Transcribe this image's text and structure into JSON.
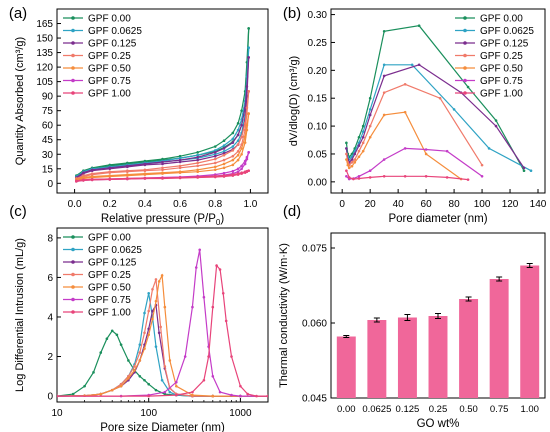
{
  "chart_data": [
    {
      "panel": "(a)",
      "type": "line",
      "xlabel": "Relative pressure (P/P",
      "xlabel_sub": "0",
      "xlabel_end": ")",
      "ylabel": "Quantity Absorbed (cm³/g)",
      "xlim": [
        -0.1,
        1.1
      ],
      "ylim": [
        -10,
        180
      ],
      "xticks": [
        0.0,
        0.2,
        0.4,
        0.6,
        0.8,
        1.0
      ],
      "xtick_labels": [
        "0.0",
        "0.2",
        "0.4",
        "0.6",
        "0.8",
        "1.0"
      ],
      "yticks": [
        0,
        15,
        30,
        45,
        60,
        75,
        90,
        105,
        120,
        135,
        150,
        165
      ],
      "ytick_labels": [
        "0",
        "15",
        "30",
        "45",
        "60",
        "75",
        "90",
        "105",
        "120",
        "135",
        "150",
        "165"
      ],
      "grid": false,
      "legend": "top-left",
      "series": [
        {
          "name": "GPF 0.00",
          "color": "#1a8f5c",
          "x": [
            0.01,
            0.05,
            0.1,
            0.2,
            0.3,
            0.4,
            0.5,
            0.6,
            0.7,
            0.8,
            0.85,
            0.9,
            0.93,
            0.95,
            0.97,
            0.98,
            0.99
          ],
          "y": [
            7,
            12,
            15,
            18,
            20,
            22,
            24,
            26,
            29,
            33,
            37,
            43,
            50,
            60,
            80,
            110,
            160
          ],
          "y_desorb": [
            8,
            13,
            16,
            19,
            21,
            23,
            25,
            28,
            32,
            38,
            44,
            52,
            62,
            75,
            95,
            125,
            160
          ]
        },
        {
          "name": "GPF 0.0625",
          "color": "#2fa3c4",
          "x": [
            0.01,
            0.05,
            0.1,
            0.2,
            0.3,
            0.4,
            0.5,
            0.6,
            0.7,
            0.8,
            0.85,
            0.9,
            0.93,
            0.95,
            0.97,
            0.98,
            0.99
          ],
          "y": [
            6,
            11,
            14,
            16,
            18,
            20,
            22,
            24,
            26,
            30,
            33,
            38,
            44,
            52,
            70,
            95,
            140
          ],
          "y_desorb": [
            7,
            12,
            15,
            17,
            19,
            21,
            23,
            26,
            29,
            34,
            39,
            46,
            55,
            66,
            85,
            110,
            140
          ]
        },
        {
          "name": "GPF 0.125",
          "color": "#7b2d8e",
          "x": [
            0.01,
            0.05,
            0.1,
            0.2,
            0.3,
            0.4,
            0.5,
            0.6,
            0.7,
            0.8,
            0.85,
            0.9,
            0.93,
            0.95,
            0.97,
            0.98,
            0.99
          ],
          "y": [
            5,
            10,
            13,
            15,
            17,
            19,
            20,
            22,
            24,
            28,
            31,
            35,
            40,
            48,
            65,
            90,
            130
          ],
          "y_desorb": [
            6,
            11,
            14,
            16,
            18,
            20,
            22,
            24,
            27,
            32,
            36,
            42,
            50,
            60,
            78,
            100,
            130
          ]
        },
        {
          "name": "GPF 0.25",
          "color": "#f07a6a",
          "x": [
            0.01,
            0.05,
            0.1,
            0.2,
            0.3,
            0.4,
            0.5,
            0.6,
            0.7,
            0.8,
            0.85,
            0.9,
            0.93,
            0.95,
            0.97,
            0.98,
            0.99
          ],
          "y": [
            4,
            7,
            9,
            11,
            12,
            13,
            14,
            16,
            18,
            21,
            24,
            28,
            33,
            40,
            55,
            72,
            95
          ],
          "y_desorb": [
            5,
            8,
            10,
            12,
            13,
            14,
            16,
            18,
            21,
            25,
            29,
            34,
            40,
            48,
            62,
            78,
            95
          ]
        },
        {
          "name": "GPF 0.50",
          "color": "#f58d3c",
          "x": [
            0.01,
            0.05,
            0.1,
            0.2,
            0.3,
            0.4,
            0.5,
            0.6,
            0.7,
            0.8,
            0.85,
            0.9,
            0.93,
            0.95,
            0.97,
            0.98,
            0.99
          ],
          "y": [
            3,
            5,
            6,
            7,
            8,
            9,
            10,
            11,
            12,
            14,
            16,
            19,
            24,
            30,
            42,
            55,
            72
          ],
          "y_desorb": [
            4,
            6,
            7,
            8,
            9,
            10,
            11,
            12,
            14,
            17,
            20,
            24,
            29,
            36,
            48,
            60,
            72
          ]
        },
        {
          "name": "GPF 0.75",
          "color": "#c43cc8",
          "x": [
            0.01,
            0.05,
            0.1,
            0.2,
            0.3,
            0.4,
            0.5,
            0.6,
            0.7,
            0.8,
            0.85,
            0.9,
            0.93,
            0.95,
            0.97,
            0.98,
            0.99
          ],
          "y": [
            2,
            3,
            3.5,
            4,
            4.5,
            5,
            5.5,
            6,
            6.5,
            7.5,
            8.5,
            10,
            12,
            15,
            20,
            25,
            32
          ],
          "y_desorb": [
            2.5,
            3.5,
            4,
            4.5,
            5,
            5.5,
            6,
            6.5,
            7.5,
            9,
            10.5,
            12.5,
            15,
            18,
            23,
            27,
            32
          ]
        },
        {
          "name": "GPF 1.00",
          "color": "#e8447a",
          "x": [
            0.01,
            0.05,
            0.1,
            0.2,
            0.3,
            0.4,
            0.5,
            0.6,
            0.7,
            0.8,
            0.85,
            0.9,
            0.93,
            0.95,
            0.97,
            0.98,
            0.99
          ],
          "y": [
            2,
            3,
            3.5,
            4,
            4.5,
            5,
            5,
            5.5,
            6,
            6.5,
            7,
            8,
            9,
            10,
            11,
            12,
            13
          ],
          "y_desorb": [
            2.5,
            3.5,
            4,
            4.5,
            5,
            5.5,
            5.5,
            6,
            6.5,
            7.5,
            8,
            9,
            10,
            11,
            12,
            12.5,
            13
          ]
        }
      ]
    },
    {
      "panel": "(b)",
      "type": "line",
      "xlabel": "Pore diameter (nm)",
      "ylabel": "dV/dlog(D) (cm³/g)",
      "xlim": [
        -8,
        145
      ],
      "ylim": [
        -0.02,
        0.31
      ],
      "xticks": [
        0,
        20,
        40,
        60,
        80,
        100,
        120,
        140
      ],
      "xtick_labels": [
        "0",
        "20",
        "40",
        "60",
        "80",
        "100",
        "120",
        "140"
      ],
      "yticks": [
        0.0,
        0.05,
        0.1,
        0.15,
        0.2,
        0.25,
        0.3
      ],
      "ytick_labels": [
        "0.00",
        "0.05",
        "0.10",
        "0.15",
        "0.20",
        "0.25",
        "0.30"
      ],
      "grid": false,
      "legend": "top-right",
      "series": [
        {
          "name": "GPF 0.00",
          "color": "#1a8f5c",
          "x": [
            3,
            4,
            5,
            7,
            9,
            12,
            15,
            20,
            30,
            55,
            90,
            110,
            130
          ],
          "y": [
            0.07,
            0.05,
            0.045,
            0.05,
            0.06,
            0.08,
            0.1,
            0.15,
            0.27,
            0.28,
            0.17,
            0.11,
            0.02
          ]
        },
        {
          "name": "GPF 0.0625",
          "color": "#2fa3c4",
          "x": [
            3,
            4,
            5,
            7,
            9,
            12,
            15,
            20,
            30,
            50,
            80,
            105,
            135
          ],
          "y": [
            0.06,
            0.045,
            0.04,
            0.045,
            0.055,
            0.07,
            0.09,
            0.13,
            0.21,
            0.21,
            0.13,
            0.06,
            0.02
          ]
        },
        {
          "name": "GPF 0.125",
          "color": "#7b2d8e",
          "x": [
            3,
            4,
            5,
            7,
            9,
            12,
            15,
            20,
            30,
            55,
            85,
            110,
            130
          ],
          "y": [
            0.06,
            0.04,
            0.035,
            0.04,
            0.05,
            0.065,
            0.08,
            0.12,
            0.19,
            0.21,
            0.16,
            0.1,
            0.025
          ]
        },
        {
          "name": "GPF 0.25",
          "color": "#f07a6a",
          "x": [
            3,
            4,
            5,
            7,
            9,
            12,
            15,
            20,
            30,
            45,
            70,
            100
          ],
          "y": [
            0.05,
            0.035,
            0.03,
            0.035,
            0.04,
            0.055,
            0.07,
            0.1,
            0.16,
            0.175,
            0.15,
            0.03
          ]
        },
        {
          "name": "GPF 0.50",
          "color": "#f58d3c",
          "x": [
            3,
            4,
            5,
            7,
            9,
            12,
            15,
            20,
            30,
            45,
            60,
            85
          ],
          "y": [
            0.04,
            0.03,
            0.025,
            0.028,
            0.035,
            0.045,
            0.055,
            0.08,
            0.12,
            0.125,
            0.05,
            0.005
          ]
        },
        {
          "name": "GPF 0.75",
          "color": "#c43cc8",
          "x": [
            3,
            5,
            8,
            12,
            20,
            30,
            45,
            60,
            75,
            100
          ],
          "y": [
            0.01,
            0.005,
            0.006,
            0.01,
            0.02,
            0.04,
            0.06,
            0.058,
            0.055,
            0.01
          ]
        },
        {
          "name": "GPF 1.00",
          "color": "#e8447a",
          "x": [
            3,
            5,
            8,
            12,
            20,
            30,
            45,
            60,
            75,
            90
          ],
          "y": [
            0.02,
            0.008,
            0.005,
            0.006,
            0.008,
            0.01,
            0.01,
            0.01,
            0.008,
            0.004
          ]
        }
      ]
    },
    {
      "panel": "(c)",
      "type": "line",
      "xscale": "log",
      "xlabel": "Pore size Diameter (nm)",
      "ylabel": "Log Differential Intrusion (mL/g)",
      "xlim": [
        10,
        2000
      ],
      "ylim": [
        -0.3,
        8.5
      ],
      "xticks": [
        10,
        100,
        1000
      ],
      "xtick_labels": [
        "10",
        "100",
        "1000"
      ],
      "yticks": [
        0,
        2,
        4,
        6,
        8
      ],
      "ytick_labels": [
        "0",
        "2",
        "4",
        "6",
        "8"
      ],
      "grid": false,
      "legend": "top-left",
      "series": [
        {
          "name": "GPF 0.00",
          "color": "#1a8f5c",
          "x": [
            10,
            15,
            20,
            25,
            30,
            35,
            40,
            45,
            50,
            60,
            70,
            80,
            90,
            100,
            120,
            150,
            200,
            300,
            500,
            1000,
            2000
          ],
          "y": [
            0,
            0.1,
            0.5,
            1.2,
            2.2,
            2.9,
            3.3,
            3.1,
            2.6,
            1.8,
            1.3,
            1.0,
            0.8,
            0.6,
            0.3,
            0.1,
            0.05,
            0,
            0,
            0,
            0
          ]
        },
        {
          "name": "GPF 0.0625",
          "color": "#2fa3c4",
          "x": [
            10,
            20,
            30,
            40,
            50,
            60,
            70,
            80,
            90,
            100,
            110,
            120,
            140,
            170,
            200,
            300,
            500,
            1000,
            2000
          ],
          "y": [
            0,
            0.02,
            0.1,
            0.3,
            0.6,
            1.0,
            1.6,
            2.6,
            4.2,
            5.2,
            4.0,
            2.5,
            0.8,
            0.2,
            0.05,
            0,
            0,
            0,
            0
          ]
        },
        {
          "name": "GPF 0.125",
          "color": "#7b2d8e",
          "x": [
            10,
            20,
            30,
            40,
            50,
            60,
            70,
            80,
            90,
            100,
            110,
            120,
            130,
            150,
            170,
            200,
            300,
            500,
            1000,
            2000
          ],
          "y": [
            0,
            0.02,
            0.1,
            0.3,
            0.5,
            0.8,
            1.2,
            1.8,
            2.6,
            3.4,
            4.3,
            4.6,
            3.2,
            1.4,
            0.4,
            0.1,
            0,
            0,
            0,
            0
          ]
        },
        {
          "name": "GPF 0.25",
          "color": "#f07a6a",
          "x": [
            10,
            20,
            30,
            40,
            50,
            60,
            70,
            80,
            90,
            100,
            110,
            120,
            135,
            150,
            170,
            200,
            300,
            500,
            1000,
            2000
          ],
          "y": [
            0,
            0.02,
            0.1,
            0.3,
            0.6,
            1.0,
            1.5,
            2.2,
            3.2,
            4.3,
            5.4,
            5.9,
            3.5,
            1.5,
            0.4,
            0.1,
            0,
            0,
            0,
            0
          ]
        },
        {
          "name": "GPF 0.50",
          "color": "#f58d3c",
          "x": [
            10,
            20,
            30,
            40,
            50,
            60,
            70,
            80,
            90,
            100,
            110,
            120,
            130,
            140,
            150,
            170,
            200,
            300,
            500,
            1000,
            2000
          ],
          "y": [
            0,
            0.02,
            0.1,
            0.3,
            0.5,
            0.9,
            1.3,
            1.8,
            2.4,
            3.1,
            3.9,
            4.8,
            5.8,
            6.1,
            4.5,
            1.8,
            0.5,
            0.05,
            0,
            0,
            0
          ]
        },
        {
          "name": "GPF 0.75",
          "color": "#c43cc8",
          "x": [
            10,
            50,
            100,
            150,
            200,
            250,
            300,
            330,
            360,
            400,
            450,
            500,
            600,
            800,
            1000,
            2000
          ],
          "y": [
            0,
            0,
            0.05,
            0.2,
            0.7,
            2.0,
            4.5,
            6.5,
            7.4,
            5.0,
            2.5,
            1.0,
            0.2,
            0.05,
            0,
            0
          ]
        },
        {
          "name": "GPF 1.00",
          "color": "#e8447a",
          "x": [
            10,
            100,
            200,
            300,
            400,
            450,
            500,
            550,
            600,
            650,
            700,
            800,
            1000,
            1200,
            1500,
            2000
          ],
          "y": [
            0,
            0,
            0.05,
            0.2,
            0.8,
            2.0,
            4.5,
            6.6,
            6.4,
            5.2,
            3.8,
            2.0,
            0.5,
            0.1,
            0,
            0
          ]
        }
      ]
    },
    {
      "panel": "(d)",
      "type": "bar",
      "xlabel": "GO wt%",
      "ylabel": "Thermal conductivity (W/m·K)",
      "categories": [
        "0.00",
        "0.0625",
        "0.125",
        "0.25",
        "0.50",
        "0.75",
        "1.00"
      ],
      "values": [
        0.0573,
        0.0606,
        0.0611,
        0.0614,
        0.0648,
        0.0688,
        0.0715
      ],
      "errors": [
        0.0002,
        0.0004,
        0.0006,
        0.0005,
        0.0004,
        0.0004,
        0.0004
      ],
      "ylim": [
        0.045,
        0.078
      ],
      "yticks": [
        0.045,
        0.06,
        0.075
      ],
      "ytick_labels": [
        "0.045",
        "0.060",
        "0.075"
      ],
      "bar_color": "#f0679a",
      "grid": false
    }
  ]
}
